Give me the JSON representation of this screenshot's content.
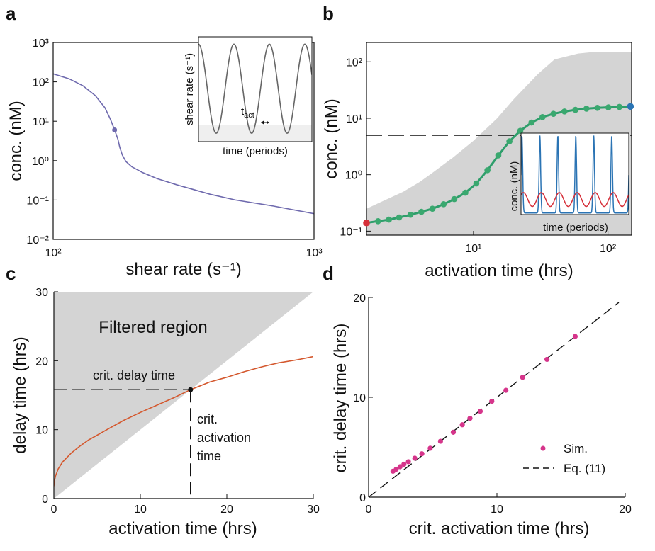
{
  "colors": {
    "shade": "#d4d4d4",
    "shade_light": "#efefef",
    "purple": "#6f6aae",
    "green": "#2e9e6b",
    "green_marker": "#3aa86f",
    "red": "#d6303a",
    "blue": "#2b74b4",
    "orange": "#d4582e",
    "magenta": "#d6358b",
    "axis": "#111111",
    "inset_line": "#666666"
  },
  "chart_data": [
    {
      "panel": "a",
      "type": "line",
      "xscale": "log",
      "yscale": "log",
      "xlim": [
        100,
        1000
      ],
      "ylim": [
        0.01,
        1000
      ],
      "xlabel": "shear rate (s⁻¹)",
      "ylabel": "conc. (nM)",
      "xticks": [
        {
          "v": 100,
          "label": "10²"
        },
        {
          "v": 1000,
          "label": "10³"
        }
      ],
      "yticks": [
        {
          "v": 1000,
          "label": "10³"
        },
        {
          "v": 100,
          "label": "10²"
        },
        {
          "v": 10,
          "label": "10¹"
        },
        {
          "v": 1,
          "label": "10⁰"
        },
        {
          "v": 0.1,
          "label": "10⁻¹"
        },
        {
          "v": 0.01,
          "label": "10⁻²"
        }
      ],
      "series": [
        {
          "x": [
            100,
            115,
            130,
            145,
            158,
            166,
            172,
            177,
            180,
            184,
            190,
            200,
            220,
            250,
            300,
            400,
            500,
            700,
            1000
          ],
          "y": [
            160,
            120,
            80,
            45,
            22,
            11,
            6,
            3.5,
            2.2,
            1.4,
            0.95,
            0.7,
            0.5,
            0.35,
            0.24,
            0.14,
            0.1,
            0.07,
            0.045
          ]
        }
      ],
      "marker": {
        "x": 172,
        "y": 6
      },
      "inset": {
        "xlabel": "time (periods)",
        "ylabel": "shear rate (s⁻¹)",
        "annotation": "t",
        "annotation_sub": "act",
        "shaded_fraction": 0.16,
        "periods": 3.2,
        "signal_min": 0.08,
        "signal_max": 0.93
      }
    },
    {
      "panel": "b",
      "type": "line",
      "xscale": "log",
      "yscale": "log",
      "xlim": [
        1.6,
        150
      ],
      "ylim": [
        0.085,
        220
      ],
      "xlabel": "activation time (hrs)",
      "ylabel": "conc. (nM)",
      "xticks": [
        {
          "v": 10,
          "label": "10¹"
        },
        {
          "v": 100,
          "label": "10²"
        }
      ],
      "yticks": [
        {
          "v": 100,
          "label": "10²"
        },
        {
          "v": 10,
          "label": "10¹"
        },
        {
          "v": 1,
          "label": "10⁰"
        },
        {
          "v": 0.1,
          "label": "10⁻¹"
        }
      ],
      "threshold": 5,
      "band_x": [
        1.6,
        2,
        3,
        4,
        5,
        7,
        10,
        15,
        20,
        30,
        40,
        60,
        80,
        100,
        150
      ],
      "band_upper": [
        0.25,
        0.32,
        0.5,
        0.75,
        1.1,
        2,
        4,
        10,
        22,
        60,
        110,
        140,
        150,
        150,
        150
      ],
      "band_lower": [
        0.05,
        0.05,
        0.05,
        0.05,
        0.05,
        0.05,
        0.05,
        0.05,
        0.05,
        0.05,
        0.05,
        0.05,
        0.05,
        0.05,
        0.05
      ],
      "series": [
        {
          "x": [
            1.6,
            1.95,
            2.35,
            2.8,
            3.4,
            4.1,
            4.95,
            6,
            7.2,
            8.7,
            10.5,
            12.7,
            15.3,
            18.5,
            22.3,
            27,
            32.6,
            39.3,
            47.5,
            57.3,
            69.2,
            83.5,
            100.8,
            121.7,
            147
          ],
          "y": [
            0.14,
            0.15,
            0.16,
            0.175,
            0.195,
            0.22,
            0.25,
            0.3,
            0.37,
            0.48,
            0.7,
            1.2,
            2.2,
            3.9,
            6,
            8.4,
            10.5,
            12,
            13.2,
            14.1,
            14.8,
            15.3,
            15.6,
            15.9,
            16.2
          ]
        }
      ],
      "endpoints": [
        {
          "x": 1.6,
          "y": 0.14,
          "color": "red"
        },
        {
          "x": 147,
          "y": 16.2,
          "color": "blue"
        }
      ],
      "inset": {
        "xlabel": "time (periods)",
        "ylabel": "conc. (nM)",
        "peaks": 6,
        "blue_max": 0.97,
        "blue_min": 0.02,
        "red_max": 0.27,
        "red_min": 0.1
      }
    },
    {
      "panel": "c",
      "type": "line",
      "xlim": [
        0,
        30
      ],
      "ylim": [
        0,
        30
      ],
      "xlabel": "activation time (hrs)",
      "ylabel": "delay time (hrs)",
      "xticks": [
        0,
        10,
        20,
        30
      ],
      "yticks": [
        0,
        10,
        20,
        30
      ],
      "region_label": "Filtered region",
      "delay_label": "crit. delay time",
      "activation_label": [
        "crit.",
        "activation",
        "time"
      ],
      "crit_point": {
        "x": 15.8,
        "y": 15.8
      },
      "series": [
        {
          "x": [
            0,
            0.05,
            0.2,
            0.5,
            1,
            2,
            3,
            4,
            5,
            6,
            8,
            10,
            12,
            14,
            15.8,
            18,
            20,
            22,
            24,
            26,
            28,
            30
          ],
          "y": [
            1.8,
            2.5,
            3.3,
            4.3,
            5.3,
            6.6,
            7.6,
            8.5,
            9.2,
            9.9,
            11.3,
            12.5,
            13.6,
            14.7,
            15.8,
            16.9,
            17.6,
            18.4,
            19.1,
            19.7,
            20.1,
            20.6
          ]
        }
      ]
    },
    {
      "panel": "d",
      "type": "scatter",
      "xlim": [
        0,
        20
      ],
      "ylim": [
        0,
        20
      ],
      "xlabel": "crit. activation time (hrs)",
      "ylabel": "crit. delay time (hrs)",
      "xticks": [
        0,
        10,
        20
      ],
      "yticks": [
        0,
        10,
        20
      ],
      "legend": {
        "placement": "bottom-right",
        "sim": "Sim.",
        "eq": "Eq. (11)"
      },
      "series": [
        {
          "name": "Sim.",
          "x": [
            1.9,
            2.15,
            2.45,
            2.75,
            3.1,
            3.6,
            4.15,
            4.8,
            5.6,
            6.6,
            7.3,
            7.9,
            8.7,
            9.6,
            10.7,
            12,
            13.9,
            16.1
          ],
          "y": [
            2.6,
            2.8,
            3.05,
            3.3,
            3.55,
            3.9,
            4.35,
            4.9,
            5.6,
            6.5,
            7.25,
            7.9,
            8.6,
            9.6,
            10.7,
            12,
            13.8,
            16.1
          ]
        }
      ],
      "line_eq": {
        "x": [
          0,
          19.5
        ],
        "y": [
          0,
          19.5
        ]
      }
    }
  ],
  "panel_labels": {
    "a": "a",
    "b": "b",
    "c": "c",
    "d": "d"
  }
}
